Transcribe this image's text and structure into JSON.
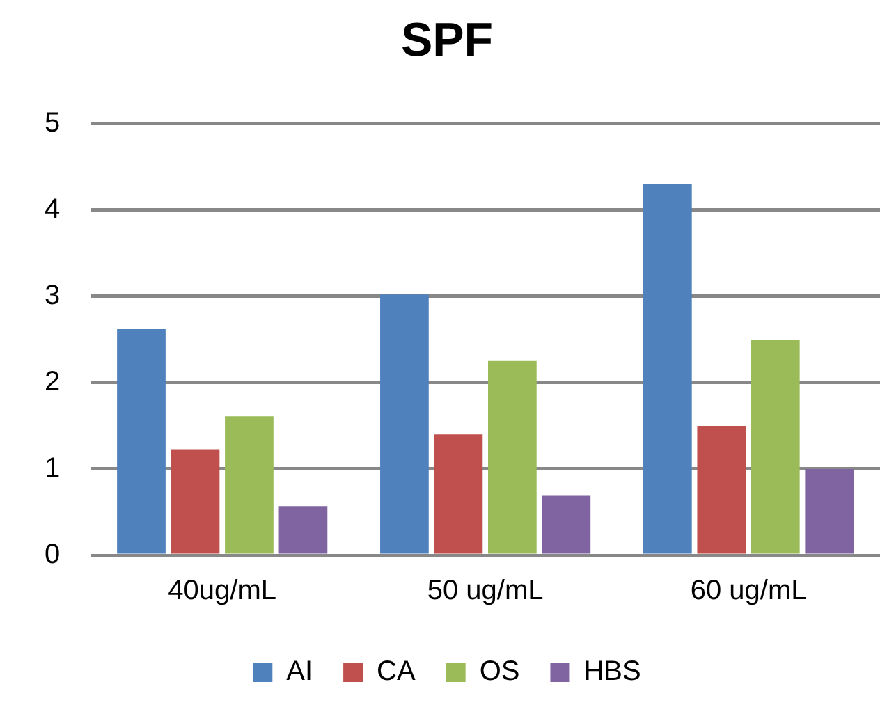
{
  "chart_data": {
    "type": "bar",
    "title": "SPF",
    "categories": [
      "40ug/mL",
      "50 ug/mL",
      "60 ug/mL"
    ],
    "series": [
      {
        "name": "AI",
        "color": "#4f81bd",
        "values": [
          2.62,
          3.02,
          4.3
        ]
      },
      {
        "name": "CA",
        "color": "#c0504d",
        "values": [
          1.23,
          1.4,
          1.5
        ]
      },
      {
        "name": "OS",
        "color": "#9bbb59",
        "values": [
          1.61,
          2.25,
          2.49
        ]
      },
      {
        "name": "HBS",
        "color": "#8064a2",
        "values": [
          0.57,
          0.69,
          1.0
        ]
      }
    ],
    "ylim": [
      0,
      5
    ],
    "yticks": [
      0,
      1,
      2,
      3,
      4,
      5
    ],
    "grid": "y",
    "legend": "bottom"
  }
}
